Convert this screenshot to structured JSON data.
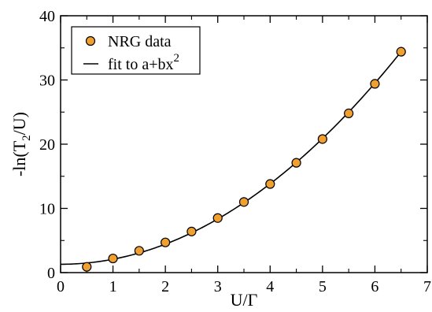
{
  "chart_data": {
    "type": "scatter",
    "xlabel": "U/Γ",
    "ylabel": {
      "base": "-ln(T",
      "sub": "2",
      "rest": "/U)"
    },
    "xlim": [
      0,
      7
    ],
    "ylim": [
      0,
      40
    ],
    "xticks": [
      0,
      1,
      2,
      3,
      4,
      5,
      6,
      7
    ],
    "yticks": [
      0,
      10,
      20,
      30,
      40
    ],
    "legend_position": "top-left",
    "series": [
      {
        "name": "NRG data",
        "kind": "markers",
        "marker_color": "#f0a030",
        "x": [
          0.5,
          1.0,
          1.5,
          2.0,
          2.5,
          3.0,
          3.5,
          4.0,
          4.5,
          5.0,
          5.5,
          6.0,
          6.5
        ],
        "y": [
          0.9,
          2.2,
          3.4,
          4.7,
          6.4,
          8.5,
          11.0,
          13.8,
          17.1,
          20.8,
          24.8,
          29.4,
          34.4
        ]
      },
      {
        "name": {
          "base": "fit to a+bx",
          "sup": "2"
        },
        "kind": "line",
        "line_color": "#000000",
        "fit": {
          "a": 1.3,
          "b": 0.7834
        }
      }
    ]
  }
}
